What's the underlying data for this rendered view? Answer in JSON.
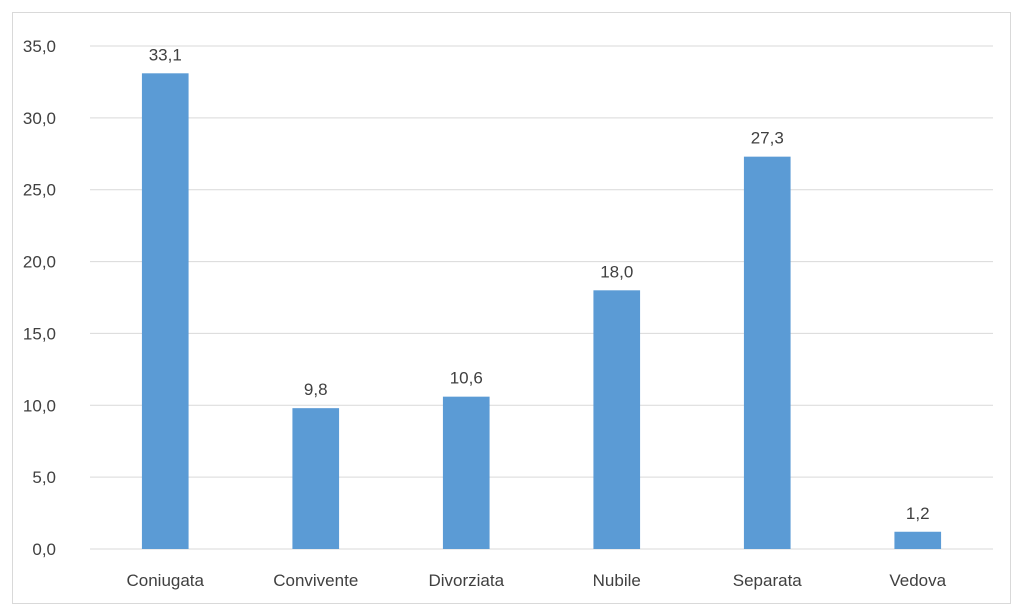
{
  "chart_data": {
    "type": "bar",
    "title": "",
    "xlabel": "",
    "ylabel": "",
    "categories": [
      "Coniugata",
      "Convivente",
      "Divorziata",
      "Nubile",
      "Separata",
      "Vedova"
    ],
    "values": [
      33.1,
      9.8,
      10.6,
      18.0,
      27.3,
      1.2
    ],
    "value_labels": [
      "33,1",
      "9,8",
      "10,6",
      "18,0",
      "27,3",
      "1,2"
    ],
    "ylim": [
      0,
      35
    ],
    "yticks": [
      0,
      5,
      10,
      15,
      20,
      25,
      30,
      35
    ],
    "ytick_labels": [
      "0,0",
      "5,0",
      "10,0",
      "15,0",
      "20,0",
      "25,0",
      "30,0",
      "35,0"
    ],
    "grid": true,
    "legend": "none",
    "bar_color": "#5b9bd5",
    "grid_color": "#d9d9d9"
  }
}
